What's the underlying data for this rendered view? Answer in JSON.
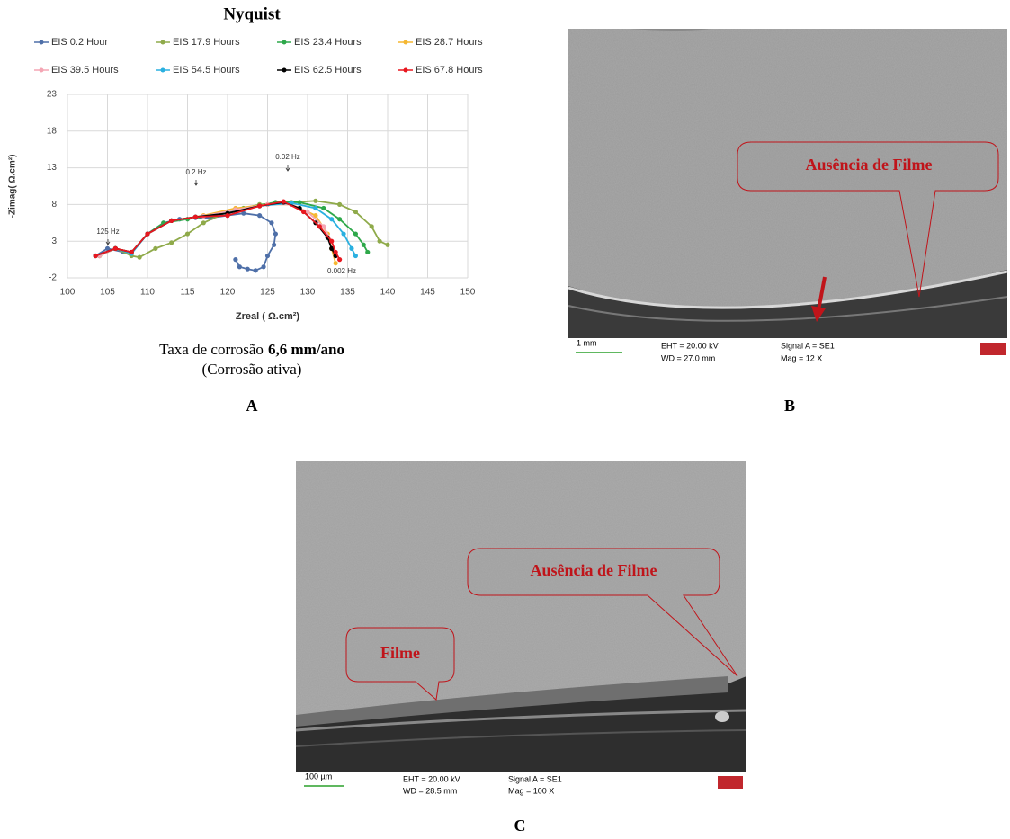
{
  "chart_data": {
    "type": "line",
    "title": "Nyquist",
    "x_label": "Zreal ( Ω.cm²)",
    "y_label": "-Zimag( Ω.cm²)",
    "xlim": [
      100,
      150
    ],
    "xticks": [
      100,
      105,
      110,
      115,
      120,
      125,
      130,
      135,
      140,
      145,
      150
    ],
    "ylim": [
      -2,
      23
    ],
    "yticks": [
      -2,
      3,
      8,
      13,
      18,
      23
    ],
    "grid": true,
    "annotations": [
      "125 Hz",
      "0.2 Hz",
      "0.02 Hz",
      "0.002 Hz"
    ],
    "series": [
      {
        "name": "EIS 0.2 Hour",
        "color": "#4e6fa8",
        "x": [
          103.5,
          105,
          107,
          108,
          110,
          112,
          114,
          116,
          118,
          120,
          122,
          124,
          125.5,
          126,
          125.8,
          125,
          124.5,
          123.5,
          122.5,
          121.5,
          121
        ],
        "values": [
          1,
          2,
          1.5,
          1.5,
          4,
          5.5,
          6,
          6.2,
          6.2,
          6.5,
          6.8,
          6.5,
          5.5,
          4,
          2.5,
          1,
          -0.5,
          -1,
          -0.8,
          -0.5,
          0.5
        ]
      },
      {
        "name": "EIS 17.9 Hours",
        "color": "#8faa4a",
        "x": [
          104,
          106,
          108,
          109,
          111,
          113,
          115,
          117,
          120,
          124,
          128,
          131,
          134,
          136,
          138,
          139,
          140
        ],
        "values": [
          1,
          2,
          1,
          0.8,
          2,
          2.8,
          4,
          5.5,
          7,
          8,
          8.3,
          8.5,
          8,
          7,
          5,
          3,
          2.5
        ]
      },
      {
        "name": "EIS 23.4 Hours",
        "color": "#2ea84a",
        "x": [
          104,
          106,
          108,
          110,
          112,
          115,
          118,
          122,
          126,
          129,
          132,
          134,
          136,
          137,
          137.5
        ],
        "values": [
          1,
          2,
          1.5,
          4,
          5.5,
          6,
          6.5,
          7.5,
          8.3,
          8.3,
          7.5,
          6,
          4,
          2.5,
          1.5
        ]
      },
      {
        "name": "EIS 28.7 Hours",
        "color": "#f5b731",
        "x": [
          104,
          106,
          108,
          110,
          113,
          117,
          121,
          125,
          128,
          131,
          132.5,
          133,
          133.5
        ],
        "values": [
          1,
          2,
          1.5,
          4,
          5.8,
          6.5,
          7.5,
          8,
          8,
          6.5,
          4,
          2,
          0
        ]
      },
      {
        "name": "EIS 39.5 Hours",
        "color": "#f4a6b4",
        "x": [
          104,
          106,
          108,
          110,
          113,
          117,
          121,
          125,
          128,
          130,
          132,
          133,
          133.5
        ],
        "values": [
          1,
          2,
          1.5,
          4,
          5.8,
          6.4,
          7.3,
          8,
          8,
          7,
          5,
          3,
          1
        ]
      },
      {
        "name": "EIS 54.5 Hours",
        "color": "#2ab0e0",
        "x": [
          103.5,
          106,
          108,
          110,
          113,
          116,
          120,
          124,
          128,
          131,
          133,
          134.5,
          135.5,
          136
        ],
        "values": [
          1,
          2,
          1.3,
          4,
          5.8,
          6.3,
          6.8,
          7.8,
          8.2,
          7.5,
          6,
          4,
          2,
          1
        ]
      },
      {
        "name": "EIS 62.5 Hours",
        "color": "#000000",
        "x": [
          103.5,
          106,
          108,
          110,
          113,
          116,
          120,
          124,
          127,
          129,
          131,
          132.5,
          133,
          133.5
        ],
        "values": [
          1,
          2,
          1.5,
          4,
          5.8,
          6.3,
          6.8,
          7.8,
          8.3,
          7.5,
          5.5,
          3.5,
          2,
          1
        ]
      },
      {
        "name": "EIS 67.8  Hours",
        "color": "#e8171f",
        "x": [
          103.5,
          106,
          108,
          110,
          113,
          116,
          120,
          124,
          127,
          129.5,
          131.5,
          133,
          133.5,
          134
        ],
        "values": [
          1,
          2,
          1.5,
          4,
          5.8,
          6.3,
          6.5,
          7.8,
          8.4,
          7,
          5,
          3,
          1.5,
          0.5
        ]
      }
    ]
  },
  "caption": {
    "rate_text": "Taxa de corrosão",
    "rate_value": "6,6 mm/ano",
    "state": "(Corrosão ativa)"
  },
  "panels": {
    "a": "A",
    "b": "B",
    "c": "C"
  },
  "sem_b": {
    "callout": "Ausência de Filme",
    "scale": "1 mm",
    "eht": "EHT = 20.00 kV",
    "wd": "WD = 27.0 mm",
    "signal": "Signal A = SE1",
    "mag": "Mag =   12 X"
  },
  "sem_c": {
    "callout": "Ausência de Filme",
    "callout2": "Filme",
    "scale": "100 µm",
    "eht": "EHT = 20.00 kV",
    "wd": "WD = 28.5 mm",
    "signal": "Signal A = SE1",
    "mag": "Mag =  100 X"
  }
}
